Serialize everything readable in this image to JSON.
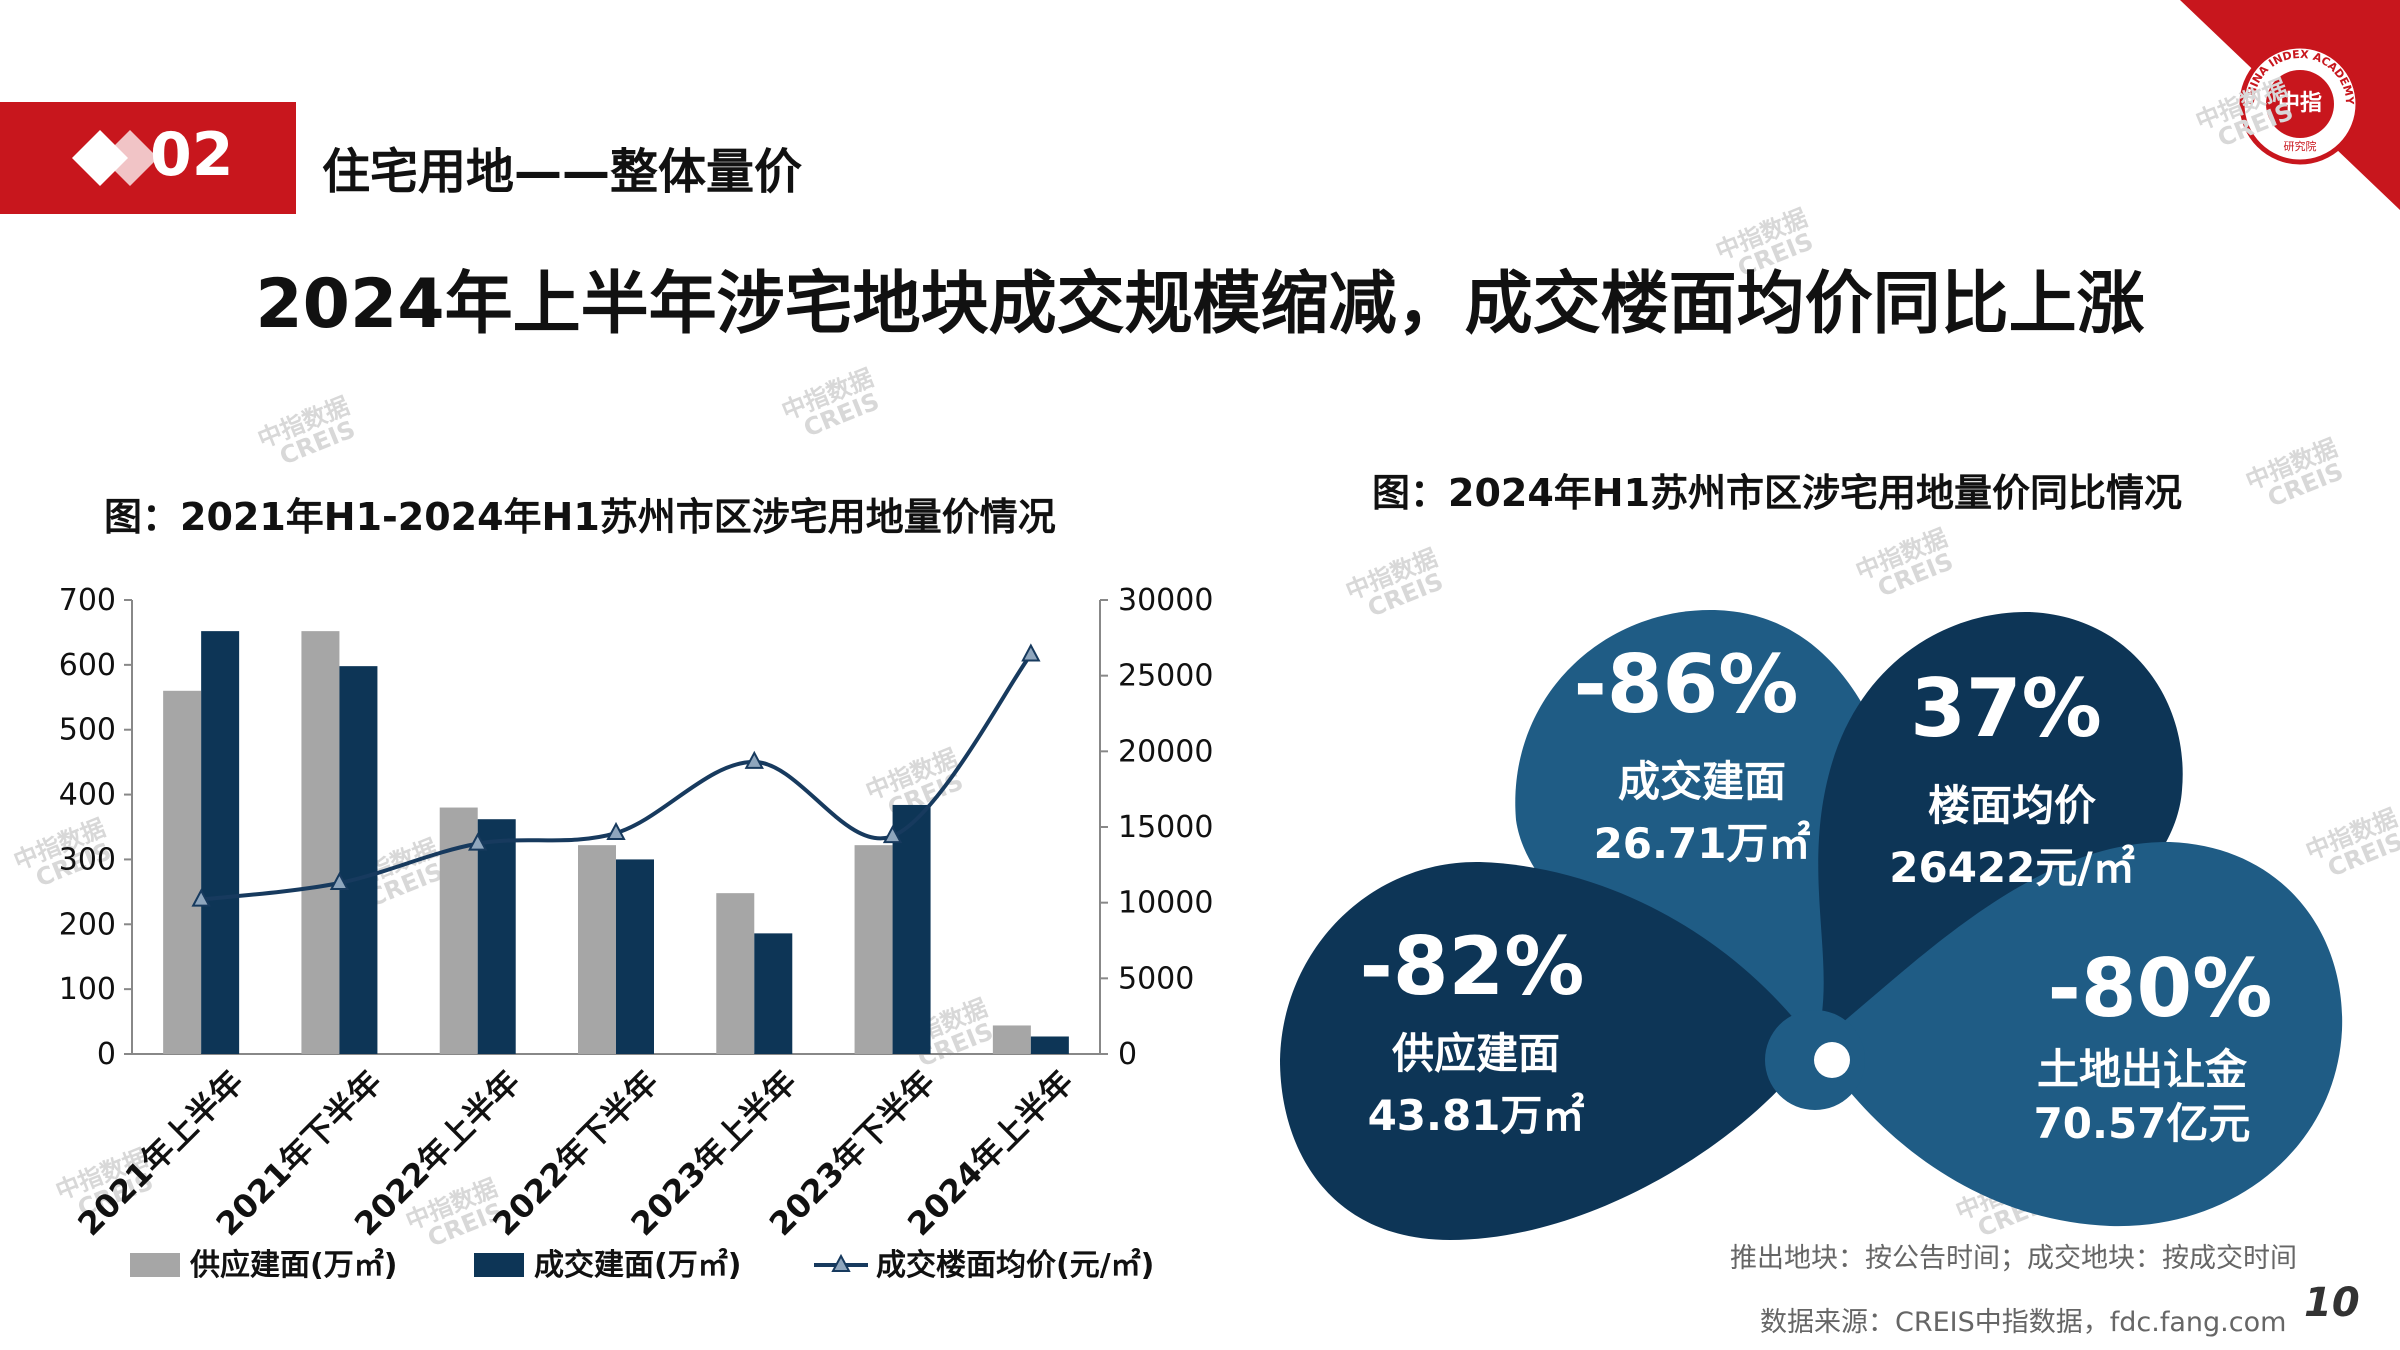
{
  "header": {
    "section_number": "02",
    "section_title": "住宅用地——整体量价",
    "headline": "2024年上半年涉宅地块成交规模缩减，成交楼面均价同比上涨",
    "logo_text": "中指",
    "logo_ring": "CHINA INDEX ACADEMY",
    "logo_sub": "研究院"
  },
  "watermark": {
    "line1": "中指数据",
    "line2": "CREIS"
  },
  "chart_data": [
    {
      "type": "bar",
      "title": "图：2021年H1-2024年H1苏州市区涉宅用地量价情况",
      "categories": [
        "2021年上半年",
        "2021年下半年",
        "2022年上半年",
        "2022年下半年",
        "2023年上半年",
        "2023年下半年",
        "2024年上半年"
      ],
      "series": [
        {
          "name": "供应建面(万㎡)",
          "kind": "bar",
          "axis": "left",
          "color": "#a6a6a6",
          "values": [
            560,
            652,
            380,
            322,
            248,
            322,
            44
          ]
        },
        {
          "name": "成交建面(万㎡)",
          "kind": "bar",
          "axis": "left",
          "color": "#0d3556",
          "values": [
            652,
            598,
            362,
            300,
            186,
            384,
            27
          ]
        },
        {
          "name": "成交楼面均价(元/㎡)",
          "kind": "line",
          "axis": "right",
          "color": "#173a5e",
          "values": [
            10200,
            11300,
            13900,
            14600,
            19300,
            14400,
            26400
          ]
        }
      ],
      "y_left": {
        "min": 0,
        "max": 700,
        "ticks": [
          0,
          100,
          200,
          300,
          400,
          500,
          600,
          700
        ]
      },
      "y_right": {
        "min": 0,
        "max": 30000,
        "ticks": [
          0,
          5000,
          10000,
          15000,
          20000,
          25000,
          30000
        ]
      },
      "legend_position": "bottom"
    },
    {
      "type": "infographic",
      "title": "图：2024年H1苏州市区涉宅用地量价同比情况",
      "items": [
        {
          "pct": "-86%",
          "label": "成交建面",
          "value": "26.71万㎡"
        },
        {
          "pct": "37%",
          "label": "楼面均价",
          "value": "26422元/㎡"
        },
        {
          "pct": "-82%",
          "label": "供应建面",
          "value": "43.81万㎡"
        },
        {
          "pct": "-80%",
          "label": "土地出让金",
          "value": "70.57亿元"
        }
      ]
    }
  ],
  "footer": {
    "note": "推出地块：按公告时间；成交地块：按成交时间",
    "source": "数据来源：CREIS中指数据，fdc.fang.com",
    "page": "10"
  },
  "colors": {
    "brand_red": "#c8161d",
    "supply": "#a6a6a6",
    "deal": "#0d3556",
    "petal_light": "#1f5c85",
    "petal_dark": "#0d3556"
  }
}
